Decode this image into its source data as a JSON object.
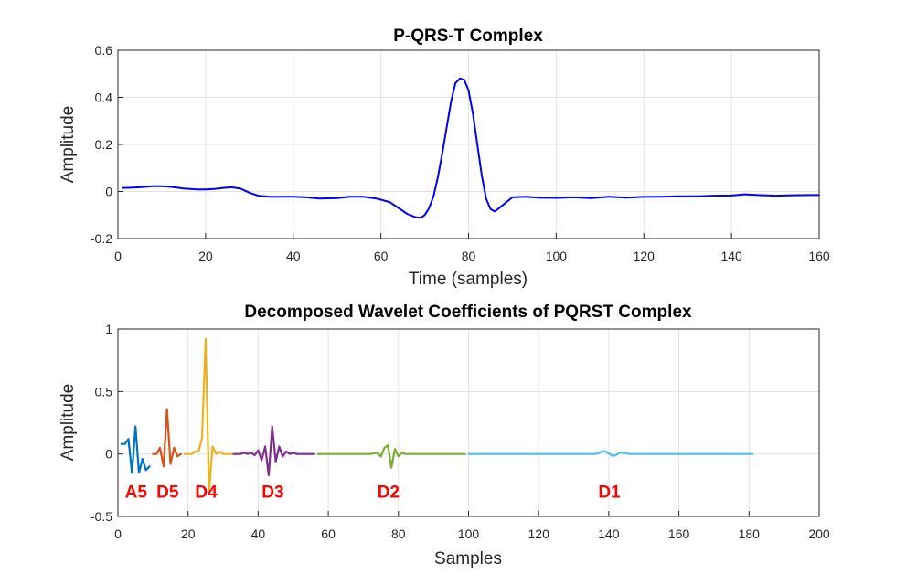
{
  "chart_data": [
    {
      "type": "line",
      "title": "P-QRS-T Complex",
      "xlabel": "Time (samples)",
      "ylabel": "Amplitude",
      "xlim": [
        0,
        160
      ],
      "ylim": [
        -0.2,
        0.6
      ],
      "xticks": [
        "0",
        "20",
        "40",
        "60",
        "80",
        "100",
        "120",
        "140",
        "160"
      ],
      "yticks": [
        "-0.2",
        "0",
        "0.2",
        "0.4",
        "0.6"
      ],
      "grid": true,
      "series": [
        {
          "color": "#0000ff",
          "x": [
            1,
            3,
            5,
            8,
            10,
            12,
            15,
            18,
            20,
            22,
            24,
            26,
            28,
            30,
            32,
            35,
            38,
            40,
            43,
            46,
            50,
            53,
            56,
            59,
            62,
            64,
            66,
            68,
            69,
            70,
            71,
            72,
            73,
            74,
            75,
            76,
            77,
            78,
            79,
            80,
            81,
            82,
            83,
            84,
            85,
            86,
            88,
            90,
            93,
            96,
            100,
            104,
            108,
            112,
            116,
            120,
            124,
            128,
            132,
            136,
            140,
            143,
            146,
            150,
            154,
            158,
            160
          ],
          "y": [
            0.015,
            0.016,
            0.018,
            0.022,
            0.022,
            0.02,
            0.013,
            0.009,
            0.009,
            0.011,
            0.015,
            0.018,
            0.012,
            -0.005,
            -0.018,
            -0.023,
            -0.022,
            -0.022,
            -0.025,
            -0.03,
            -0.028,
            -0.022,
            -0.022,
            -0.03,
            -0.045,
            -0.07,
            -0.095,
            -0.11,
            -0.112,
            -0.1,
            -0.07,
            -0.02,
            0.06,
            0.16,
            0.27,
            0.38,
            0.46,
            0.48,
            0.475,
            0.43,
            0.33,
            0.2,
            0.07,
            -0.03,
            -0.075,
            -0.085,
            -0.055,
            -0.025,
            -0.022,
            -0.026,
            -0.027,
            -0.025,
            -0.028,
            -0.022,
            -0.026,
            -0.023,
            -0.022,
            -0.02,
            -0.02,
            -0.018,
            -0.017,
            -0.012,
            -0.015,
            -0.018,
            -0.016,
            -0.015,
            -0.015
          ]
        }
      ]
    },
    {
      "type": "line",
      "title": "Decomposed Wavelet Coefficients of PQRST Complex",
      "xlabel": "Samples",
      "ylabel": "Amplitude",
      "xlim": [
        0,
        200
      ],
      "ylim": [
        -0.5,
        1
      ],
      "xticks": [
        "0",
        "20",
        "40",
        "60",
        "80",
        "100",
        "120",
        "140",
        "160",
        "180",
        "200"
      ],
      "yticks": [
        "-0.5",
        "0",
        "0.5",
        "1"
      ],
      "grid": true,
      "series": [
        {
          "name": "A5",
          "color": "#0072bd",
          "x": [
            1,
            2,
            3,
            4,
            5,
            6,
            7,
            8,
            9
          ],
          "y": [
            0.08,
            0.08,
            0.12,
            -0.15,
            0.22,
            -0.15,
            -0.04,
            -0.13,
            -0.1
          ]
        },
        {
          "name": "D5",
          "color": "#d95319",
          "x": [
            10,
            11,
            12,
            13,
            14,
            15,
            16,
            17,
            18
          ],
          "y": [
            0.0,
            0.0,
            0.05,
            -0.1,
            0.36,
            -0.08,
            0.05,
            -0.02,
            0.0
          ]
        },
        {
          "name": "D4",
          "color": "#edb120",
          "x": [
            19,
            20,
            21,
            22,
            23,
            24,
            25,
            26,
            27,
            28,
            29,
            30,
            31,
            32,
            33
          ],
          "y": [
            0.0,
            0.0,
            0.0,
            0.02,
            0.02,
            0.13,
            0.92,
            -0.3,
            0.06,
            0.0,
            0.02,
            0.0,
            0.0,
            0.0,
            0.0
          ]
        },
        {
          "name": "D3",
          "color": "#7e2f8e",
          "x": [
            33,
            34,
            35,
            36,
            37,
            38,
            39,
            40,
            41,
            42,
            43,
            44,
            45,
            46,
            47,
            48,
            49,
            50,
            51,
            52,
            53,
            54,
            55,
            56
          ],
          "y": [
            0.0,
            0.0,
            0.0,
            0.01,
            0.0,
            0.01,
            -0.01,
            0.03,
            -0.05,
            0.06,
            -0.17,
            0.22,
            -0.06,
            0.06,
            -0.02,
            0.02,
            0.0,
            0.01,
            0.0,
            0.0,
            0.0,
            0.0,
            0.0,
            0.0
          ]
        },
        {
          "name": "D2",
          "color": "#77ac30",
          "x": [
            57,
            60,
            63,
            66,
            69,
            72,
            74,
            75,
            76,
            77,
            78,
            79,
            80,
            81,
            82,
            84,
            86,
            88,
            90,
            93,
            96,
            99
          ],
          "y": [
            0.0,
            0.0,
            0.0,
            0.0,
            0.0,
            0.0,
            0.01,
            -0.02,
            0.05,
            0.07,
            -0.11,
            0.04,
            -0.02,
            0.01,
            0.0,
            0.0,
            0.0,
            0.0,
            0.0,
            0.0,
            0.0,
            0.0
          ]
        },
        {
          "name": "D1",
          "color": "#4dbeee",
          "x": [
            100,
            110,
            120,
            130,
            134,
            136,
            137,
            138,
            139,
            140,
            141,
            142,
            143,
            144,
            146,
            150,
            160,
            170,
            181
          ],
          "y": [
            0.0,
            0.0,
            0.0,
            0.0,
            0.0,
            0.0,
            0.005,
            0.02,
            0.02,
            0.005,
            -0.015,
            -0.01,
            0.01,
            0.01,
            0.0,
            0.0,
            0.0,
            0.0,
            0.0
          ]
        }
      ],
      "annotations": [
        {
          "text": "A5",
          "x": 2,
          "y": -0.35,
          "color": "#ff0000"
        },
        {
          "text": "D5",
          "x": 11,
          "y": -0.35,
          "color": "#ff0000"
        },
        {
          "text": "D4",
          "x": 22,
          "y": -0.35,
          "color": "#ff0000"
        },
        {
          "text": "D3",
          "x": 41,
          "y": -0.35,
          "color": "#ff0000"
        },
        {
          "text": "D2",
          "x": 74,
          "y": -0.35,
          "color": "#ff0000"
        },
        {
          "text": "D1",
          "x": 137,
          "y": -0.35,
          "color": "#ff0000"
        }
      ]
    }
  ]
}
